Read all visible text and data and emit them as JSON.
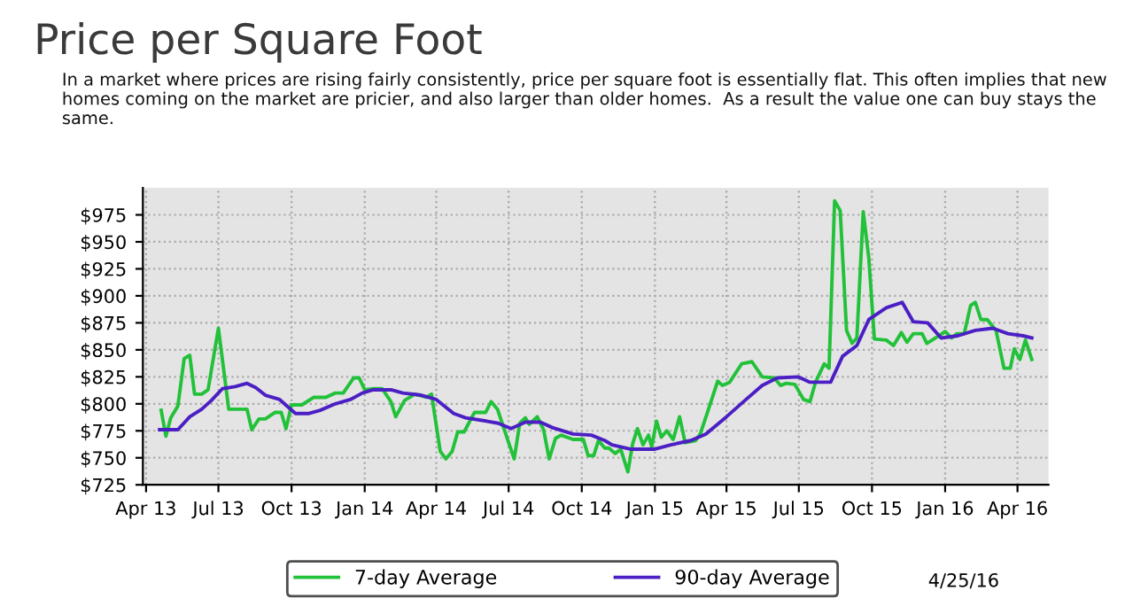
{
  "chart_data": {
    "type": "line",
    "title": "Price per Square Foot",
    "subtitle": "In a market where prices are rising fairly consistently, price per square foot is essentially flat. This often implies that new homes coming on the market are pricier, and also larger than older homes.  As a result the value one can buy stays the same.",
    "annotations": [
      "4/25/16"
    ],
    "series": [
      {
        "name": "7-day Average",
        "color": "#22c13a",
        "x": [
          "2013-04-20",
          "2013-04-26",
          "2013-05-02",
          "2013-05-11",
          "2013-05-19",
          "2013-05-26",
          "2013-06-01",
          "2013-06-10",
          "2013-06-18",
          "2013-07-01",
          "2013-07-14",
          "2013-08-06",
          "2013-08-12",
          "2013-08-21",
          "2013-08-29",
          "2013-09-10",
          "2013-09-18",
          "2013-09-24",
          "2013-10-01",
          "2013-10-14",
          "2013-10-29",
          "2013-11-13",
          "2013-11-25",
          "2013-12-05",
          "2013-12-18",
          "2013-12-25",
          "2014-01-01",
          "2014-01-12",
          "2014-01-23",
          "2014-02-03",
          "2014-02-09",
          "2014-02-20",
          "2014-03-05",
          "2014-03-20",
          "2014-03-26",
          "2014-04-06",
          "2014-04-13",
          "2014-04-21",
          "2014-04-28",
          "2014-05-06",
          "2014-05-19",
          "2014-06-02",
          "2014-06-09",
          "2014-06-17",
          "2014-07-02",
          "2014-07-08",
          "2014-07-15",
          "2014-07-22",
          "2014-07-27",
          "2014-08-06",
          "2014-08-14",
          "2014-08-21",
          "2014-08-29",
          "2014-09-05",
          "2014-09-20",
          "2014-10-03",
          "2014-10-09",
          "2014-10-16",
          "2014-10-22",
          "2014-10-30",
          "2014-11-04",
          "2014-11-12",
          "2014-11-19",
          "2014-11-28",
          "2014-12-04",
          "2014-12-10",
          "2014-12-17",
          "2014-12-24",
          "2014-12-28",
          "2015-01-03",
          "2015-01-09",
          "2015-01-16",
          "2015-01-24",
          "2015-02-01",
          "2015-02-08",
          "2015-02-21",
          "2015-02-27",
          "2015-03-08",
          "2015-03-21",
          "2015-03-27",
          "2015-04-05",
          "2015-04-20",
          "2015-05-03",
          "2015-05-16",
          "2015-05-31",
          "2015-06-08",
          "2015-06-15",
          "2015-06-26",
          "2015-07-07",
          "2015-07-15",
          "2015-07-22",
          "2015-08-02",
          "2015-08-08",
          "2015-08-15",
          "2015-08-22",
          "2015-08-30",
          "2015-09-06",
          "2015-09-12",
          "2015-09-20",
          "2015-09-27",
          "2015-10-04",
          "2015-10-19",
          "2015-10-28",
          "2015-11-07",
          "2015-11-14",
          "2015-11-22",
          "2015-12-03",
          "2015-12-09",
          "2015-12-26",
          "2016-01-01",
          "2016-01-09",
          "2016-01-16",
          "2016-01-25",
          "2016-02-02",
          "2016-02-08",
          "2016-02-15",
          "2016-02-23",
          "2016-03-05",
          "2016-03-15",
          "2016-03-23",
          "2016-03-28",
          "2016-04-04",
          "2016-04-11",
          "2016-04-19"
        ],
        "values": [
          794,
          770,
          787,
          798,
          842,
          845,
          809,
          809,
          813,
          870,
          795,
          795,
          776,
          786,
          786,
          792,
          792,
          777,
          799,
          799,
          806,
          806,
          810,
          810,
          824,
          824,
          813,
          814,
          814,
          802,
          788,
          803,
          809,
          806,
          809,
          756,
          749,
          756,
          774,
          774,
          792,
          792,
          802,
          795,
          762,
          749,
          782,
          787,
          781,
          788,
          776,
          749,
          768,
          771,
          767,
          767,
          752,
          752,
          766,
          759,
          759,
          754,
          758,
          737,
          763,
          777,
          762,
          771,
          760,
          784,
          769,
          775,
          767,
          788,
          764,
          766,
          772,
          792,
          821,
          817,
          820,
          837,
          839,
          825,
          824,
          817,
          819,
          818,
          804,
          802,
          820,
          837,
          833,
          988,
          979,
          868,
          856,
          861,
          978,
          935,
          860,
          859,
          854,
          866,
          857,
          865,
          865,
          856,
          864,
          867,
          861,
          865,
          865,
          891,
          894,
          878,
          878,
          868,
          833,
          833,
          851,
          841,
          859,
          841
        ]
      },
      {
        "name": "90-day Average",
        "color": "#4b1fc4",
        "x": [
          "2013-04-18",
          "2013-05-11",
          "2013-05-26",
          "2013-06-10",
          "2013-06-22",
          "2013-07-06",
          "2013-07-22",
          "2013-08-06",
          "2013-08-17",
          "2013-08-29",
          "2013-09-16",
          "2013-10-06",
          "2013-10-22",
          "2013-11-06",
          "2013-11-25",
          "2013-12-14",
          "2013-12-29",
          "2014-01-12",
          "2014-02-03",
          "2014-02-18",
          "2014-03-13",
          "2014-04-01",
          "2014-04-23",
          "2014-05-08",
          "2014-06-03",
          "2014-06-18",
          "2014-07-04",
          "2014-07-22",
          "2014-08-10",
          "2014-08-25",
          "2014-09-20",
          "2014-10-13",
          "2014-10-30",
          "2014-11-08",
          "2014-12-01",
          "2015-01-01",
          "2015-01-21",
          "2015-02-15",
          "2015-03-06",
          "2015-04-01",
          "2015-04-24",
          "2015-05-16",
          "2015-06-04",
          "2015-06-30",
          "2015-07-15",
          "2015-08-10",
          "2015-08-25",
          "2015-09-12",
          "2015-09-27",
          "2015-10-19",
          "2015-11-08",
          "2015-11-22",
          "2015-12-10",
          "2015-12-27",
          "2016-01-17",
          "2016-02-08",
          "2016-03-01",
          "2016-03-20",
          "2016-04-08",
          "2016-04-19"
        ],
        "values": [
          776,
          776,
          788,
          795,
          803,
          814,
          816,
          819,
          815,
          808,
          804,
          791,
          791,
          794,
          800,
          804,
          810,
          813,
          813,
          810,
          808,
          804,
          791,
          787,
          784,
          782,
          777,
          783,
          783,
          778,
          772,
          771,
          766,
          762,
          758,
          758,
          762,
          766,
          772,
          788,
          803,
          817,
          824,
          825,
          820,
          820,
          844,
          854,
          878,
          889,
          894,
          876,
          875,
          861,
          863,
          868,
          870,
          865,
          863,
          861
        ]
      }
    ],
    "xlim": [
      "2013-03-28",
      "2016-05-10"
    ],
    "xticks": [
      {
        "value": "2013-04-01",
        "label": "Apr 13"
      },
      {
        "value": "2013-07-01",
        "label": "Jul 13"
      },
      {
        "value": "2013-10-01",
        "label": "Oct 13"
      },
      {
        "value": "2014-01-01",
        "label": "Jan 14"
      },
      {
        "value": "2014-04-01",
        "label": "Apr 14"
      },
      {
        "value": "2014-07-01",
        "label": "Jul 14"
      },
      {
        "value": "2014-10-01",
        "label": "Oct 14"
      },
      {
        "value": "2015-01-01",
        "label": "Jan 15"
      },
      {
        "value": "2015-04-01",
        "label": "Apr 15"
      },
      {
        "value": "2015-07-01",
        "label": "Jul 15"
      },
      {
        "value": "2015-10-01",
        "label": "Oct 15"
      },
      {
        "value": "2016-01-01",
        "label": "Jan 16"
      },
      {
        "value": "2016-04-01",
        "label": "Apr 16"
      }
    ],
    "ylim": [
      725,
      1000
    ],
    "yticks": [
      {
        "value": 725,
        "label": "$725"
      },
      {
        "value": 750,
        "label": "$750"
      },
      {
        "value": 775,
        "label": "$775"
      },
      {
        "value": 800,
        "label": "$800"
      },
      {
        "value": 825,
        "label": "$825"
      },
      {
        "value": 850,
        "label": "$850"
      },
      {
        "value": 875,
        "label": "$875"
      },
      {
        "value": 900,
        "label": "$900"
      },
      {
        "value": 925,
        "label": "$925"
      },
      {
        "value": 950,
        "label": "$950"
      },
      {
        "value": 975,
        "label": "$975"
      }
    ],
    "grid": true,
    "legend": "bottom",
    "marker": "none",
    "line_style": "solid"
  }
}
